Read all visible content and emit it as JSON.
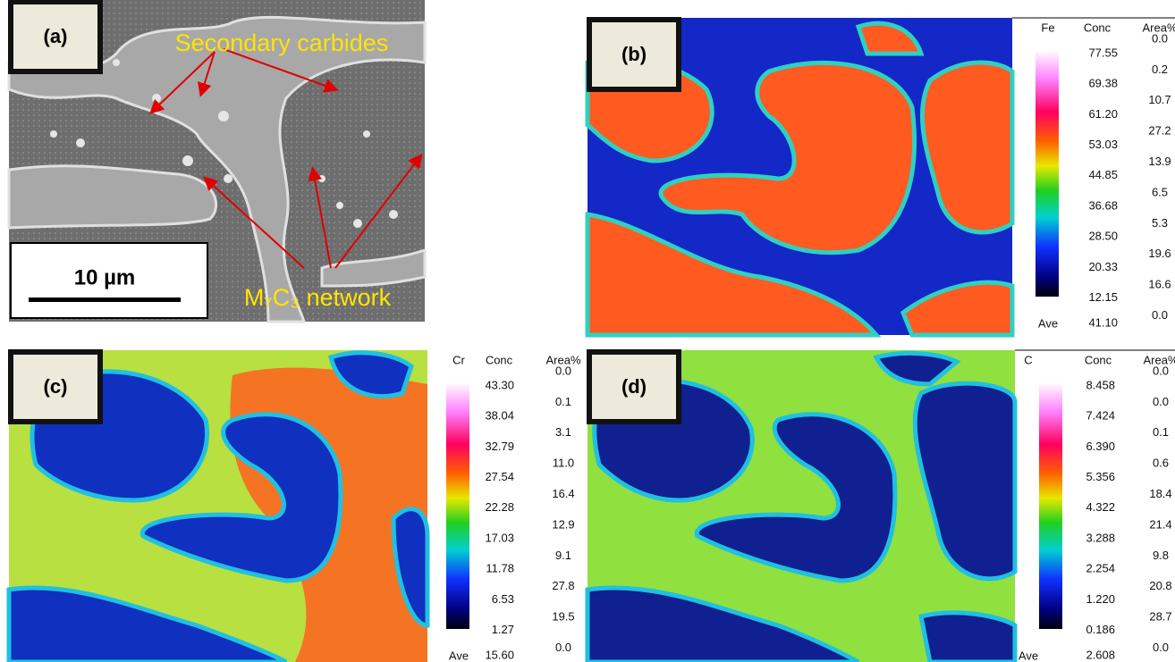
{
  "panels": [
    {
      "label": "(a)",
      "annotations": [
        "Secondary carbides",
        "M₇C₃ network"
      ],
      "scale_bar": "10 µm"
    },
    {
      "label": "(b)",
      "legend": {
        "element": "Fe",
        "conc_header": "Conc",
        "area_header": "Area%",
        "conc": [
          "77.55",
          "69.38",
          "61.20",
          "53.03",
          "44.85",
          "36.68",
          "28.50",
          "20.33",
          "12.15"
        ],
        "area": [
          "0.0",
          "0.2",
          "10.7",
          "27.2",
          "13.9",
          "6.5",
          "5.3",
          "19.6",
          "16.6",
          "0.0"
        ],
        "ave_label": "Ave",
        "ave": "41.10"
      }
    },
    {
      "label": "(c)",
      "legend": {
        "element": "Cr",
        "conc_header": "Conc",
        "area_header": "Area%",
        "conc": [
          "43.30",
          "38.04",
          "32.79",
          "27.54",
          "22.28",
          "17.03",
          "11.78",
          "6.53",
          "1.27"
        ],
        "area": [
          "0.0",
          "0.1",
          "3.1",
          "11.0",
          "16.4",
          "12.9",
          "9.1",
          "27.8",
          "19.5",
          "0.0"
        ],
        "ave_label": "Ave",
        "ave": "15.60"
      }
    },
    {
      "label": "(d)",
      "legend": {
        "element": "C",
        "conc_header": "Conc",
        "area_header": "Area%",
        "conc": [
          "8.458",
          "7.424",
          "6.390",
          "5.356",
          "4.322",
          "3.288",
          "2.254",
          "1.220",
          "0.186"
        ],
        "area": [
          "0.0",
          "0.0",
          "0.1",
          "0.6",
          "18.4",
          "21.4",
          "9.8",
          "20.8",
          "28.7",
          "0.0"
        ],
        "ave_label": "Ave",
        "ave": "2.608"
      }
    }
  ]
}
